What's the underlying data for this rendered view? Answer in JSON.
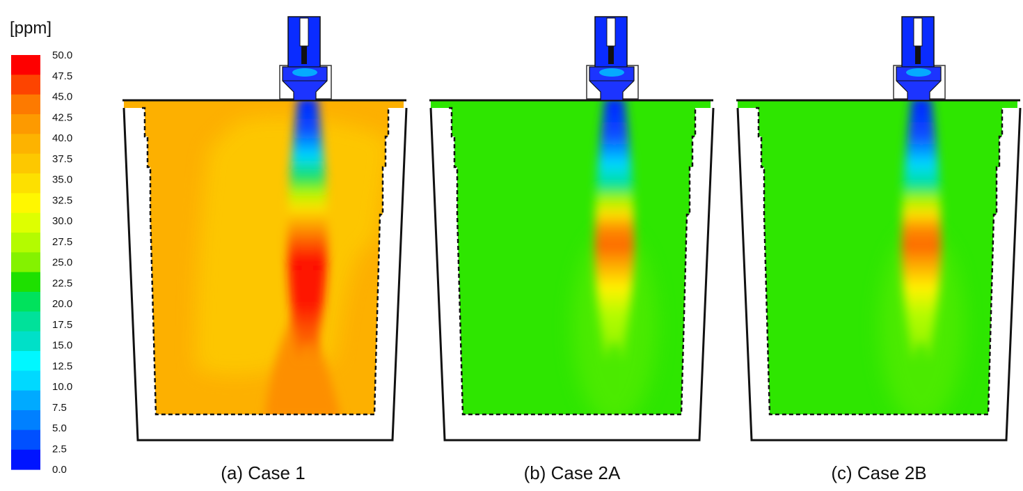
{
  "colorbar": {
    "unit": "[ppm]",
    "ticks": [
      "50.0",
      "47.5",
      "45.0",
      "42.5",
      "40.0",
      "37.5",
      "35.0",
      "32.5",
      "30.0",
      "27.5",
      "25.0",
      "22.5",
      "20.0",
      "17.5",
      "15.0",
      "12.5",
      "10.0",
      "7.5",
      "5.0",
      "2.5",
      "0.0"
    ],
    "colors": [
      "#fe0000",
      "#fd4400",
      "#fd7a00",
      "#fd9a00",
      "#fdb300",
      "#fdc800",
      "#fde000",
      "#fff700",
      "#deff00",
      "#b4fb00",
      "#84f200",
      "#1ee000",
      "#00e25c",
      "#00e19a",
      "#00e0c8",
      "#00f7ff",
      "#00d9ff",
      "#00aaff",
      "#0080ff",
      "#0050ff",
      "#0014ff"
    ]
  },
  "cases": [
    {
      "caption": "(a) Case 1",
      "background_color": "#fdb000"
    },
    {
      "caption": "(b) Case 2A",
      "background_color": "#2ee600"
    },
    {
      "caption": "(c) Case 2B",
      "background_color": "#2ee600"
    }
  ]
}
